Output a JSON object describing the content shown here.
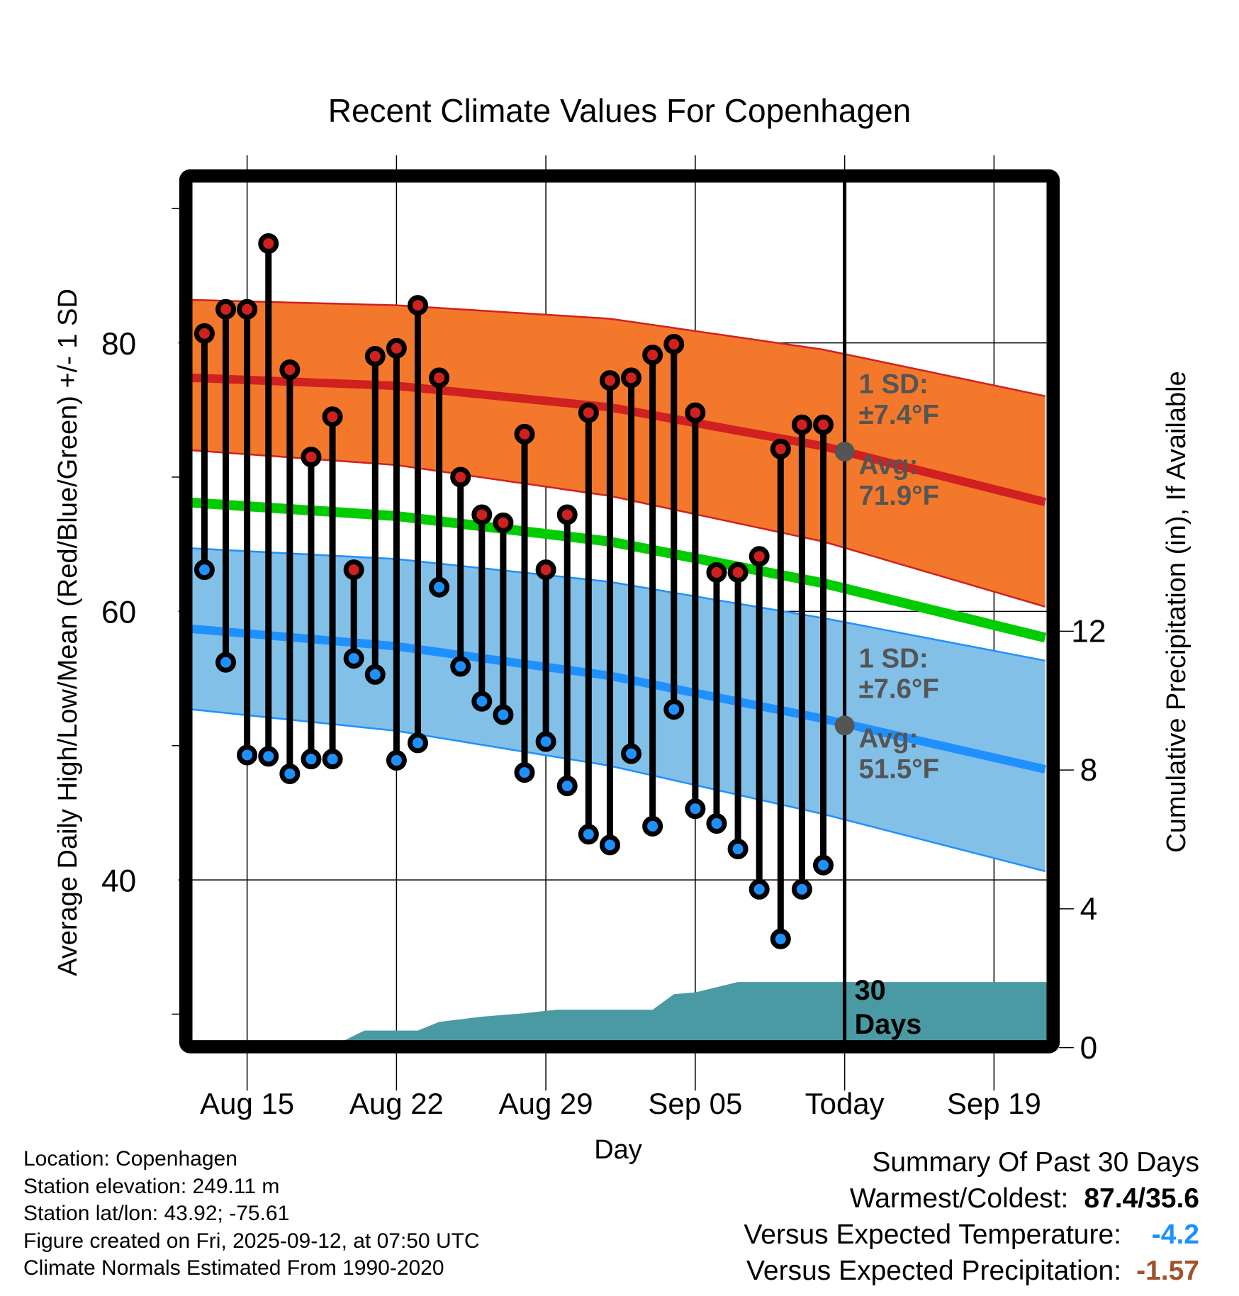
{
  "chart_data": {
    "type": "line",
    "title": "Recent Climate Values For Copenhagen",
    "xlabel": "Day",
    "ylabel": "Average Daily High/Low/Mean (Red/Blue/Green) +/- 1 SD",
    "y2label": "Cumulative Precipitation (in), If Available",
    "ylim": [
      28,
      92
    ],
    "y2lim": [
      0,
      24
    ],
    "xlim_days_from_aug13": [
      -0.6,
      39.5
    ],
    "yticks": [
      {
        "value": 40,
        "label": "40"
      },
      {
        "value": 60,
        "label": "60"
      },
      {
        "value": 80,
        "label": "80"
      }
    ],
    "yminor_ticks": [
      30,
      50,
      70,
      90
    ],
    "y2ticks": [
      {
        "value": 0,
        "label": "0"
      },
      {
        "value": 4,
        "label": "4"
      },
      {
        "value": 8,
        "label": "8"
      },
      {
        "value": 12,
        "label": "12"
      }
    ],
    "xticks": [
      {
        "day": 2,
        "label": "Aug 15"
      },
      {
        "day": 9,
        "label": "Aug 22"
      },
      {
        "day": 16,
        "label": "Aug 29"
      },
      {
        "day": 23,
        "label": "Sep 05"
      },
      {
        "day": 30,
        "label": "Today"
      },
      {
        "day": 37,
        "label": "Sep 19"
      }
    ],
    "today_day": 30,
    "grid": true,
    "dates": [
      "Aug 13",
      "Aug 14",
      "Aug 15",
      "Aug 16",
      "Aug 17",
      "Aug 18",
      "Aug 19",
      "Aug 20",
      "Aug 21",
      "Aug 22",
      "Aug 23",
      "Aug 24",
      "Aug 25",
      "Aug 26",
      "Aug 27",
      "Aug 28",
      "Aug 29",
      "Aug 30",
      "Aug 31",
      "Sep 01",
      "Sep 02",
      "Sep 03",
      "Sep 04",
      "Sep 05",
      "Sep 06",
      "Sep 07",
      "Sep 08",
      "Sep 09",
      "Sep 10",
      "Sep 11"
    ],
    "series": [
      {
        "name": "Daily High",
        "color": "#d02020",
        "values": [
          80.7,
          82.5,
          82.5,
          87.4,
          78.0,
          71.5,
          74.5,
          63.1,
          79.0,
          79.6,
          82.8,
          77.4,
          70.0,
          67.2,
          66.6,
          73.2,
          63.1,
          67.2,
          74.8,
          77.2,
          77.4,
          79.1,
          79.9,
          74.8,
          62.9,
          62.9,
          64.1,
          72.1,
          73.9,
          73.9
        ]
      },
      {
        "name": "Daily Low",
        "color": "#1e90ff",
        "values": [
          63.1,
          56.2,
          49.3,
          49.2,
          47.9,
          49.0,
          49.0,
          56.5,
          55.3,
          48.9,
          50.2,
          61.8,
          55.9,
          53.3,
          52.3,
          48.0,
          50.3,
          47.0,
          43.4,
          42.6,
          49.4,
          44.0,
          52.7,
          45.3,
          44.2,
          42.3,
          39.3,
          35.6,
          39.3,
          41.1
        ]
      }
    ],
    "normals": {
      "x_days": [
        -0.6,
        9,
        19,
        29,
        39.5
      ],
      "high_avg": [
        77.4,
        76.8,
        75.2,
        72.3,
        68.1
      ],
      "high_sd_upper": [
        83.2,
        82.8,
        81.8,
        79.5,
        76.0
      ],
      "high_sd_lower": [
        72.0,
        70.9,
        68.6,
        65.2,
        60.3
      ],
      "mean": [
        68.1,
        67.1,
        65.2,
        62.1,
        58.0
      ],
      "low_avg": [
        58.7,
        57.4,
        55.2,
        52.0,
        48.2
      ],
      "low_sd_upper": [
        64.7,
        63.9,
        62.2,
        59.5,
        56.3
      ],
      "low_sd_lower": [
        52.7,
        51.1,
        48.5,
        44.9,
        40.6
      ],
      "colors": {
        "high_band": "#f4782c",
        "high_line": "#d02020",
        "mean_line": "#00cc00",
        "low_band": "#82c0e8",
        "low_line": "#1e90ff"
      }
    },
    "precip": {
      "color": "#4a9aa4",
      "x_days": [
        6.5,
        7.5,
        10,
        11,
        13,
        15,
        16.5,
        21,
        22,
        23,
        25,
        39.5
      ],
      "values": [
        0,
        0.3,
        0.3,
        0.55,
        0.7,
        0.8,
        0.9,
        0.9,
        1.35,
        1.4,
        1.7,
        1.7
      ],
      "label_line1": "30",
      "label_line2": "Days"
    },
    "annotations": {
      "high_sd": "1 SD:",
      "high_sd_val": "±7.4°F",
      "high_avg": "Avg:",
      "high_avg_val": "71.9°F",
      "high_avg_today": 71.9,
      "low_sd": "1 SD:",
      "low_sd_val": "±7.6°F",
      "low_avg": "Avg:",
      "low_avg_val": "51.5°F",
      "low_avg_today": 51.5
    }
  },
  "footer": {
    "location": "Location: Copenhagen",
    "elevation": "Station elevation: 249.11 m",
    "latlon": "Station lat/lon: 43.92; -75.61",
    "created": "Figure created on Fri, 2025-09-12, at 07:50 UTC",
    "normals": "Climate Normals Estimated From 1990-2020"
  },
  "summary": {
    "title": "Summary Of Past 30 Days",
    "warm_cold_label": "Warmest/Coldest:",
    "warm_cold_value": "87.4/35.6",
    "temp_label": "Versus Expected Temperature:",
    "temp_value": "-4.2",
    "precip_label": "Versus Expected Precipitation:",
    "precip_value": "-1.57"
  }
}
